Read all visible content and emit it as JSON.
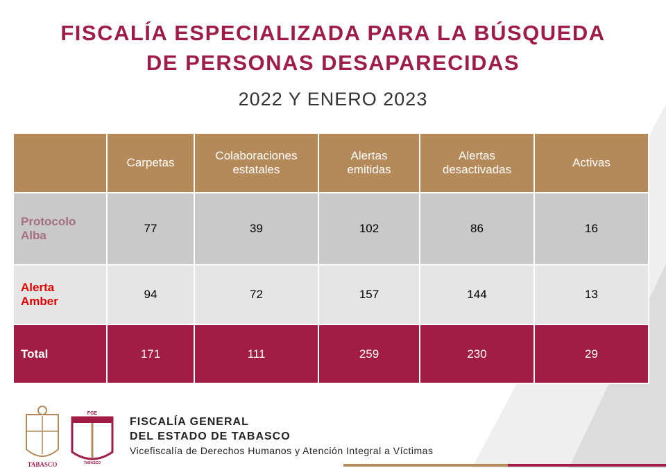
{
  "header": {
    "title_lines": [
      "FISCALÍA ESPECIALIZADA PARA LA BÚSQUEDA",
      "DE PERSONAS DESAPARECIDAS"
    ],
    "subtitle": "2022 Y ENERO 2023"
  },
  "table": {
    "columns": [
      "Carpetas",
      "Colaboraciones estatales",
      "Alertas emitidas",
      "Alertas desactivadas",
      "Activas"
    ],
    "rows": [
      {
        "label": "Protocolo Alba",
        "cells": [
          77,
          39,
          102,
          86,
          16
        ]
      },
      {
        "label": "Alerta Amber",
        "cells": [
          94,
          72,
          157,
          144,
          13
        ]
      },
      {
        "label": "Total",
        "cells": [
          171,
          111,
          259,
          230,
          29
        ]
      }
    ]
  },
  "footer": {
    "logo_texts": [
      "TABASCO",
      "FGE",
      "TABASCO"
    ],
    "org_lines": [
      "FISCALÍA GENERAL",
      "DEL ESTADO DE TABASCO"
    ],
    "unit": "Vicefiscalía de Derechos Humanos y Atención Integral a Víctimas"
  }
}
